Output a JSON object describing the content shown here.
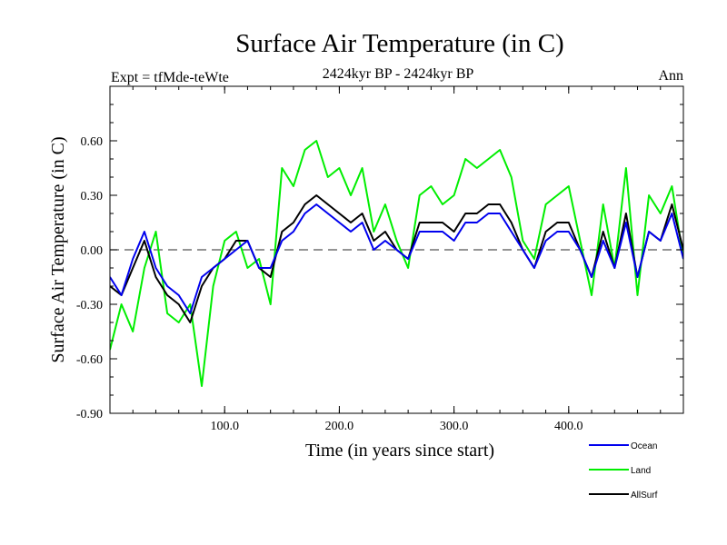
{
  "chart_data": {
    "type": "line",
    "title": "Surface Air Temperature (in C)",
    "subtitle": "2424kyr BP - 2424kyr BP",
    "left_label": "Expt = tfMde-teWte",
    "right_label": "Ann",
    "xlabel": "Time (in years since start)",
    "ylabel": "Surface Air Temperature (in C)",
    "xlim": [
      0,
      500
    ],
    "ylim": [
      -0.9,
      0.9
    ],
    "x_ticks": [
      {
        "value": 100,
        "label": "100.0"
      },
      {
        "value": 200,
        "label": "200.0"
      },
      {
        "value": 300,
        "label": "300.0"
      },
      {
        "value": 400,
        "label": "400.0"
      }
    ],
    "y_ticks": [
      {
        "value": 0.6,
        "label": "0.60"
      },
      {
        "value": 0.3,
        "label": "0.30"
      },
      {
        "value": 0.0,
        "label": "0.00"
      },
      {
        "value": -0.3,
        "label": "-0.30"
      },
      {
        "value": -0.6,
        "label": "-0.60"
      },
      {
        "value": -0.9,
        "label": "-0.90"
      }
    ],
    "zero_line": {
      "y": 0,
      "style": "dashed"
    },
    "series": [
      {
        "name": "Land",
        "color": "#00ee00",
        "x": [
          0,
          10,
          20,
          30,
          40,
          50,
          60,
          70,
          80,
          90,
          100,
          110,
          120,
          130,
          140,
          150,
          160,
          170,
          180,
          190,
          200,
          210,
          220,
          230,
          240,
          250,
          260,
          270,
          280,
          290,
          300,
          310,
          320,
          330,
          340,
          350,
          360,
          370,
          380,
          390,
          400,
          410,
          420,
          430,
          440,
          450,
          460,
          470,
          480,
          490,
          500
        ],
        "y": [
          -0.55,
          -0.3,
          -0.45,
          -0.1,
          0.1,
          -0.35,
          -0.4,
          -0.3,
          -0.75,
          -0.2,
          0.05,
          0.1,
          -0.1,
          -0.05,
          -0.3,
          0.45,
          0.35,
          0.55,
          0.6,
          0.4,
          0.45,
          0.3,
          0.45,
          0.1,
          0.25,
          0.05,
          -0.1,
          0.3,
          0.35,
          0.25,
          0.3,
          0.5,
          0.45,
          0.5,
          0.55,
          0.4,
          0.05,
          -0.05,
          0.25,
          0.3,
          0.35,
          0.05,
          -0.25,
          0.25,
          -0.1,
          0.45,
          -0.25,
          0.3,
          0.2,
          0.35,
          -0.05
        ]
      },
      {
        "name": "AllSurf",
        "color": "#000000",
        "x": [
          0,
          10,
          20,
          30,
          40,
          50,
          60,
          70,
          80,
          90,
          100,
          110,
          120,
          130,
          140,
          150,
          160,
          170,
          180,
          190,
          200,
          210,
          220,
          230,
          240,
          250,
          260,
          270,
          280,
          290,
          300,
          310,
          320,
          330,
          340,
          350,
          360,
          370,
          380,
          390,
          400,
          410,
          420,
          430,
          440,
          450,
          460,
          470,
          480,
          490,
          500
        ],
        "y": [
          -0.2,
          -0.25,
          -0.1,
          0.05,
          -0.15,
          -0.25,
          -0.3,
          -0.4,
          -0.2,
          -0.1,
          -0.05,
          0.05,
          0.05,
          -0.1,
          -0.15,
          0.1,
          0.15,
          0.25,
          0.3,
          0.25,
          0.2,
          0.15,
          0.2,
          0.05,
          0.1,
          0.0,
          -0.05,
          0.15,
          0.15,
          0.15,
          0.1,
          0.2,
          0.2,
          0.25,
          0.25,
          0.15,
          0.0,
          -0.1,
          0.1,
          0.15,
          0.15,
          0.0,
          -0.15,
          0.1,
          -0.1,
          0.2,
          -0.15,
          0.1,
          0.05,
          0.25,
          0.0
        ]
      },
      {
        "name": "Ocean",
        "color": "#0000ee",
        "x": [
          0,
          10,
          20,
          30,
          40,
          50,
          60,
          70,
          80,
          90,
          100,
          110,
          120,
          130,
          140,
          150,
          160,
          170,
          180,
          190,
          200,
          210,
          220,
          230,
          240,
          250,
          260,
          270,
          280,
          290,
          300,
          310,
          320,
          330,
          340,
          350,
          360,
          370,
          380,
          390,
          400,
          410,
          420,
          430,
          440,
          450,
          460,
          470,
          480,
          490,
          500
        ],
        "y": [
          -0.15,
          -0.25,
          -0.05,
          0.1,
          -0.1,
          -0.2,
          -0.25,
          -0.35,
          -0.15,
          -0.1,
          -0.05,
          0.0,
          0.05,
          -0.1,
          -0.1,
          0.05,
          0.1,
          0.2,
          0.25,
          0.2,
          0.15,
          0.1,
          0.15,
          0.0,
          0.05,
          0.0,
          -0.05,
          0.1,
          0.1,
          0.1,
          0.05,
          0.15,
          0.15,
          0.2,
          0.2,
          0.1,
          0.0,
          -0.1,
          0.05,
          0.1,
          0.1,
          0.0,
          -0.15,
          0.05,
          -0.1,
          0.15,
          -0.15,
          0.1,
          0.05,
          0.2,
          -0.05
        ]
      }
    ],
    "legend": [
      {
        "name": "Ocean",
        "color": "#0000ee"
      },
      {
        "name": "Land",
        "color": "#00ee00"
      },
      {
        "name": "AllSurf",
        "color": "#000000"
      }
    ]
  }
}
